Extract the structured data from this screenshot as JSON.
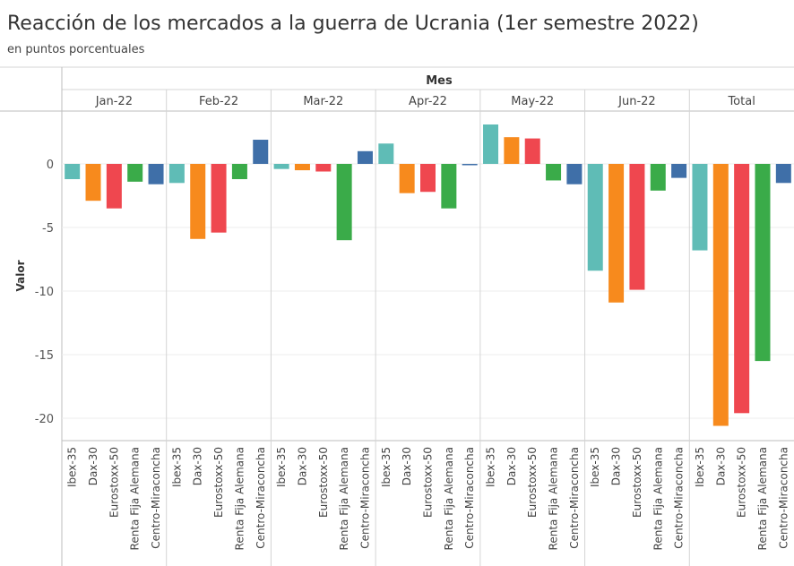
{
  "title": "Reacción de los mercados a la guerra de Ucrania (1er semestre 2022)",
  "subtitle": "en puntos porcentuales",
  "colors": {
    "Ibex-35": "#5fbcb6",
    "Dax-30": "#f78a1d",
    "Eurostoxx-50": "#ef474f",
    "Renta Fija Alemana": "#3aab49",
    "Centro-Miraconcha": "#3f6fa8"
  },
  "chart_data": {
    "type": "bar",
    "title": "Reacción de los mercados a la guerra de Ucrania (1er semestre 2022)",
    "xlabel": "Mes",
    "ylabel": "Valor",
    "ylim": [
      -21.5,
      4
    ],
    "yticks": [
      0,
      -5,
      -10,
      -15,
      -20
    ],
    "panels": [
      "Jan-22",
      "Feb-22",
      "Mar-22",
      "Apr-22",
      "May-22",
      "Jun-22",
      "Total"
    ],
    "categories": [
      "Ibex-35",
      "Dax-30",
      "Eurostoxx-50",
      "Renta Fija Alemana",
      "Centro-Miraconcha"
    ],
    "series": [
      {
        "name": "Jan-22",
        "values": [
          -1.2,
          -2.9,
          -3.5,
          -1.4,
          -1.6
        ]
      },
      {
        "name": "Feb-22",
        "values": [
          -1.5,
          -5.9,
          -5.4,
          -1.2,
          1.9
        ]
      },
      {
        "name": "Mar-22",
        "values": [
          -0.4,
          -0.5,
          -0.6,
          -6.0,
          1.0
        ]
      },
      {
        "name": "Apr-22",
        "values": [
          1.6,
          -2.3,
          -2.2,
          -3.5,
          -0.1
        ]
      },
      {
        "name": "May-22",
        "values": [
          3.1,
          2.1,
          2.0,
          -1.3,
          -1.6
        ]
      },
      {
        "name": "Jun-22",
        "values": [
          -8.4,
          -10.9,
          -9.9,
          -2.1,
          -1.1
        ]
      },
      {
        "name": "Total",
        "values": [
          -6.8,
          -20.6,
          -19.6,
          -15.5,
          -1.5
        ]
      }
    ]
  }
}
